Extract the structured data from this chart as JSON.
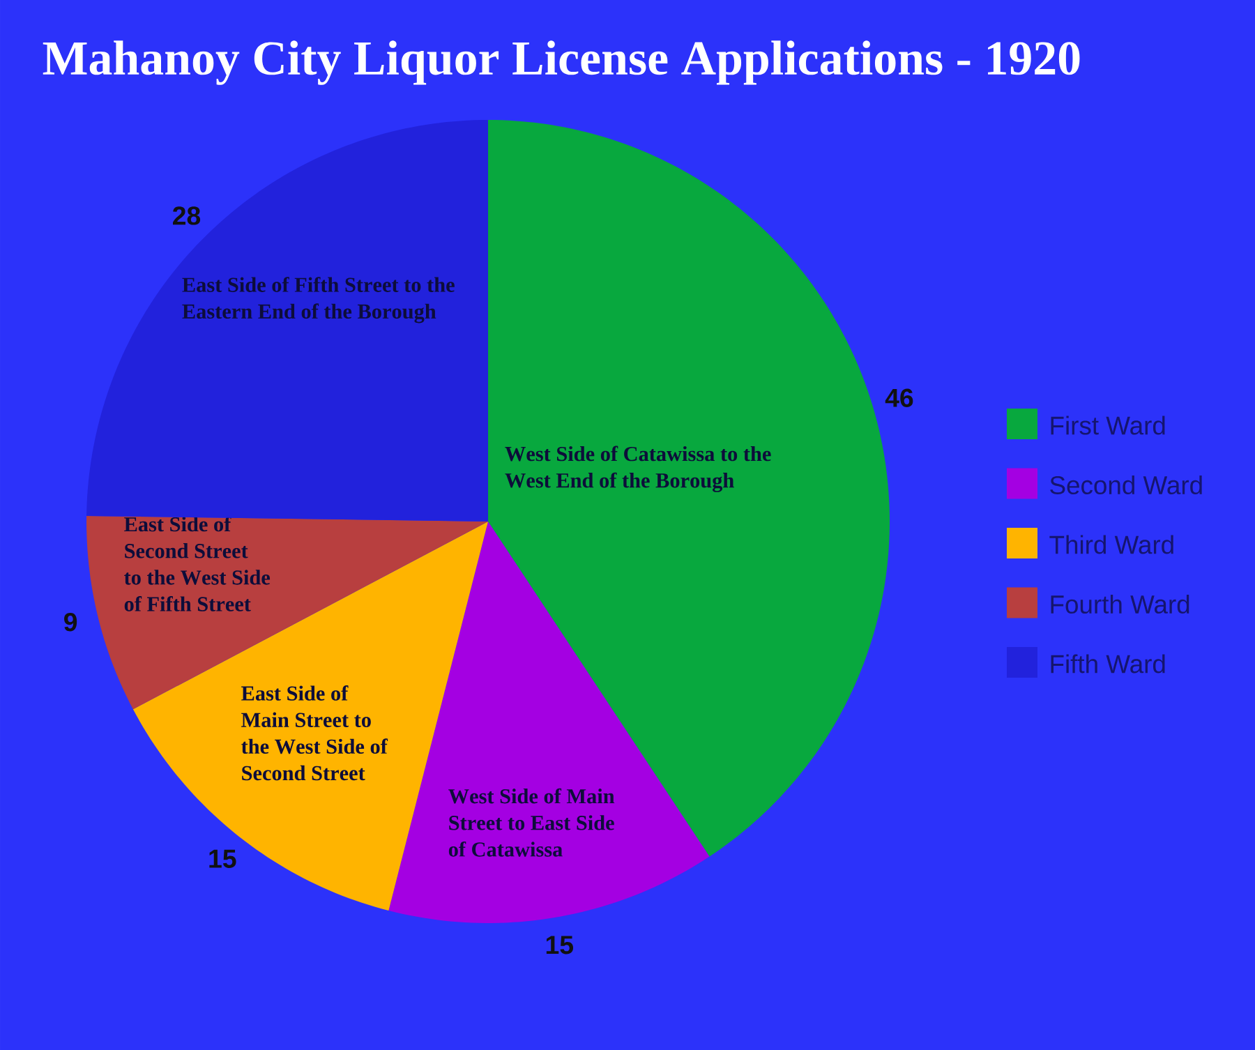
{
  "chart_data": {
    "type": "pie",
    "title": "Mahanoy City Liquor License Applications - 1920",
    "categories": [
      "First Ward",
      "Second Ward",
      "Third Ward",
      "Fourth Ward",
      "Fifth Ward"
    ],
    "values": [
      46,
      15,
      15,
      9,
      28
    ],
    "colors": [
      "#08a83e",
      "#a400e2",
      "#ffb400",
      "#b83f3f",
      "#2222dc"
    ],
    "data_labels": true,
    "legend": "right",
    "annotations": [
      "West Side of Catawissa to the West End of the Borough",
      "West Side of Main Street to East Side of Catawissa",
      "East Side of Main Street to the West Side of Second Street",
      "East Side of Second Street to the West Side of Fifth Street",
      "East Side of Fifth Street to the Eastern End of the Borough"
    ]
  }
}
